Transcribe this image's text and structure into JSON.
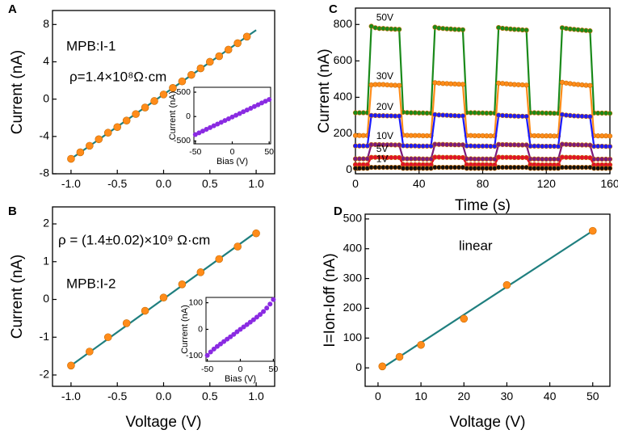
{
  "chart_data": [
    {
      "type": "scatter",
      "label": "A",
      "y_label": "Current (nA)",
      "xlim": [
        -1.2,
        1.2
      ],
      "ylim": [
        -8,
        9.5
      ],
      "xticks": [
        {
          "value": -1,
          "label": "-1.0"
        },
        -0.5,
        {
          "value": 0,
          "label": "0.0"
        },
        0.5,
        {
          "value": 1,
          "label": "1.0"
        }
      ],
      "yticks": [
        -8,
        -4,
        0,
        4,
        8
      ],
      "annotations": [
        "MPB:I-1",
        "ρ=1.4×10⁸Ω·cm"
      ],
      "series": [
        {
          "style": "line",
          "color": "#1f7f7f",
          "x": [
            -1,
            1
          ],
          "values": [
            -6.4,
            7.4
          ]
        },
        {
          "style": "markers",
          "color": "#ff8c1a",
          "x": [
            -1,
            -0.9,
            -0.8,
            -0.7,
            -0.6,
            -0.5,
            -0.4,
            -0.3,
            -0.2,
            -0.1,
            0,
            0.1,
            0.2,
            0.3,
            0.4,
            0.5,
            0.6,
            0.7,
            0.8,
            0.9
          ],
          "values": [
            -6.4,
            -5.7,
            -5.0,
            -4.3,
            -3.6,
            -3.0,
            -2.3,
            -1.6,
            -0.9,
            -0.2,
            0.5,
            1.2,
            1.9,
            2.6,
            3.3,
            4.0,
            4.6,
            5.3,
            6.0,
            6.7
          ]
        }
      ],
      "inset": {
        "type": "scatter",
        "x_label": "Bias (V)",
        "y_label": "Current (nA)",
        "xlim": [
          -52,
          52
        ],
        "ylim": [
          -560,
          600
        ],
        "xticks": [
          -50,
          0,
          50
        ],
        "yticks": [
          -500,
          0,
          500
        ],
        "series": [
          {
            "style": "markers",
            "color": "#8a2be2",
            "x": [
              -50,
              -45,
              -40,
              -35,
              -30,
              -25,
              -20,
              -15,
              -10,
              -5,
              0,
              5,
              10,
              15,
              20,
              25,
              30,
              35,
              40,
              45,
              50
            ],
            "values": [
              -370,
              -334,
              -298,
              -262,
              -226,
              -190,
              -154,
              -118,
              -82,
              -46,
              -10,
              26,
              62,
              98,
              134,
              170,
              206,
              242,
              278,
              314,
              350
            ]
          }
        ]
      }
    },
    {
      "type": "scatter",
      "label": "B",
      "x_label": "Voltage (V)",
      "y_label": "Current (nA)",
      "xlim": [
        -1.2,
        1.2
      ],
      "ylim": [
        -2.3,
        2.45
      ],
      "xticks": [
        {
          "value": -1,
          "label": "-1.0"
        },
        -0.5,
        {
          "value": 0,
          "label": "0.0"
        },
        0.5,
        {
          "value": 1,
          "label": "1.0"
        }
      ],
      "yticks": [
        -2,
        -1,
        0,
        1,
        2
      ],
      "annotations": [
        "ρ = (1.4±0.02)×10⁹ Ω·cm",
        "MPB:I-2"
      ],
      "series": [
        {
          "style": "line",
          "color": "#1f7f7f",
          "x": [
            -1,
            1
          ],
          "values": [
            -1.75,
            1.78
          ]
        },
        {
          "style": "markers",
          "color": "#ff8c1a",
          "x": [
            -1,
            -0.8,
            -0.6,
            -0.4,
            -0.2,
            0,
            0.2,
            0.4,
            0.6,
            0.8,
            1
          ],
          "values": [
            -1.75,
            -1.38,
            -1.0,
            -0.63,
            -0.3,
            0.05,
            0.4,
            0.72,
            1.07,
            1.4,
            1.75
          ]
        }
      ],
      "inset": {
        "type": "scatter",
        "x_label": "Bias (V)",
        "y_label": "Current (nA)",
        "xlim": [
          -52,
          52
        ],
        "ylim": [
          -120,
          120
        ],
        "xticks": [
          -50,
          0,
          50
        ],
        "yticks": [
          -100,
          0,
          100
        ],
        "series": [
          {
            "style": "markers",
            "color": "#8a2be2",
            "x": [
              -50,
              -45,
              -40,
              -35,
              -30,
              -25,
              -20,
              -15,
              -10,
              -5,
              0,
              5,
              10,
              15,
              20,
              25,
              30,
              35,
              40,
              45,
              50
            ],
            "values": [
              -98,
              -85,
              -74,
              -64,
              -55,
              -46,
              -37,
              -28,
              -19,
              -9,
              0,
              9,
              18,
              27,
              36,
              46,
              56,
              67,
              80,
              95,
              112
            ]
          }
        ]
      }
    },
    {
      "type": "line",
      "label": "C",
      "x_label": "Time (s)",
      "y_label": "Current (nA)",
      "xlim": [
        0,
        160
      ],
      "ylim": [
        -20,
        890
      ],
      "xticks": [
        0,
        40,
        80,
        120,
        160
      ],
      "yticks": [
        0,
        200,
        400,
        600,
        800
      ],
      "x": [
        0,
        2.5,
        5,
        7.5,
        10,
        12.5,
        15,
        17.5,
        20,
        22.5,
        25,
        27.5,
        30,
        32.5,
        35,
        37.5,
        40,
        42.5,
        45,
        47.5,
        50,
        52.5,
        55,
        57.5,
        60,
        62.5,
        65,
        67.5,
        70,
        72.5,
        75,
        77.5,
        80,
        82.5,
        85,
        87.5,
        90,
        92.5,
        95,
        97.5,
        100,
        102.5,
        105,
        107.5,
        110,
        112.5,
        115,
        117.5,
        120,
        122.5,
        125,
        127.5,
        130,
        132.5,
        135,
        137.5,
        140,
        142.5,
        145,
        147.5,
        150,
        152.5,
        155,
        157.5,
        160
      ],
      "series": [
        {
          "name": "50V",
          "style": "line+markers",
          "color": "#1a8a1a",
          "values": [
            315,
            315,
            315,
            315,
            790,
            782,
            778,
            778,
            776,
            775,
            774,
            773,
            318,
            316,
            315,
            315,
            314,
            314,
            313,
            313,
            785,
            780,
            778,
            776,
            775,
            773,
            772,
            771,
            316,
            315,
            315,
            314,
            314,
            313,
            313,
            313,
            783,
            779,
            777,
            775,
            773,
            772,
            770,
            769,
            315,
            315,
            314,
            314,
            313,
            313,
            312,
            312,
            782,
            778,
            775,
            773,
            771,
            769,
            767,
            765,
            314,
            313,
            313,
            313,
            312
          ]
        },
        {
          "name": "30V",
          "style": "line+markers",
          "color": "#ff8c1a",
          "values": [
            190,
            190,
            190,
            190,
            468,
            470,
            470,
            470,
            468,
            467,
            466,
            465,
            192,
            191,
            190,
            190,
            190,
            189,
            189,
            189,
            480,
            478,
            476,
            475,
            474,
            473,
            472,
            471,
            190,
            190,
            189,
            189,
            189,
            188,
            188,
            188,
            478,
            476,
            474,
            472,
            470,
            469,
            468,
            467,
            190,
            189,
            189,
            188,
            188,
            188,
            187,
            187,
            482,
            478,
            475,
            472,
            470,
            468,
            466,
            465,
            189,
            188,
            188,
            188,
            187
          ]
        },
        {
          "name": "20V",
          "style": "line+markers",
          "color": "#1a1aff",
          "values": [
            133,
            133,
            133,
            133,
            300,
            300,
            299,
            299,
            298,
            298,
            297,
            297,
            134,
            133,
            133,
            133,
            132,
            132,
            132,
            132,
            305,
            303,
            302,
            301,
            300,
            299,
            298,
            298,
            133,
            133,
            132,
            132,
            132,
            132,
            131,
            131,
            302,
            300,
            299,
            298,
            297,
            296,
            296,
            295,
            132,
            132,
            132,
            131,
            131,
            131,
            131,
            130,
            305,
            302,
            300,
            298,
            297,
            296,
            295,
            294,
            131,
            131,
            131,
            130,
            130
          ]
        },
        {
          "name": "10V",
          "style": "line+markers",
          "color": "#7b1a7b",
          "values": [
            62,
            62,
            62,
            62,
            140,
            140,
            140,
            139,
            139,
            139,
            138,
            138,
            63,
            62,
            62,
            62,
            62,
            61,
            61,
            61,
            142,
            141,
            141,
            140,
            140,
            139,
            139,
            139,
            62,
            62,
            61,
            61,
            61,
            61,
            61,
            60,
            141,
            140,
            140,
            139,
            139,
            138,
            138,
            138,
            61,
            61,
            61,
            60,
            60,
            60,
            60,
            60,
            142,
            141,
            140,
            139,
            139,
            138,
            138,
            137,
            60,
            60,
            60,
            60,
            60
          ]
        },
        {
          "name": "5V",
          "style": "line+markers",
          "color": "#e0102a",
          "values": [
            30,
            30,
            30,
            30,
            70,
            70,
            70,
            70,
            69,
            69,
            69,
            69,
            31,
            30,
            30,
            30,
            30,
            30,
            30,
            30,
            71,
            71,
            70,
            70,
            70,
            70,
            69,
            69,
            30,
            30,
            30,
            30,
            30,
            30,
            29,
            29,
            71,
            70,
            70,
            70,
            69,
            69,
            69,
            69,
            30,
            30,
            29,
            29,
            29,
            29,
            29,
            29,
            71,
            70,
            70,
            70,
            69,
            69,
            69,
            68,
            29,
            29,
            29,
            29,
            29
          ]
        },
        {
          "name": "1V",
          "style": "line+markers",
          "color": "#111111",
          "values": [
            10,
            10,
            10,
            10,
            15,
            15,
            15,
            15,
            15,
            15,
            15,
            15,
            10,
            10,
            10,
            10,
            10,
            10,
            10,
            10,
            15,
            15,
            15,
            15,
            15,
            15,
            15,
            15,
            10,
            10,
            10,
            10,
            10,
            10,
            10,
            10,
            15,
            15,
            15,
            15,
            15,
            15,
            15,
            15,
            10,
            10,
            10,
            10,
            10,
            10,
            10,
            10,
            15,
            15,
            15,
            15,
            15,
            15,
            15,
            15,
            10,
            10,
            10,
            10,
            10
          ]
        }
      ]
    },
    {
      "type": "scatter",
      "label": "D",
      "x_label": "Voltage (V)",
      "y_label": "I=Ion-Ioff (nA)",
      "xlim": [
        -3,
        54
      ],
      "ylim": [
        -62,
        516
      ],
      "xticks": [
        0,
        10,
        20,
        30,
        40,
        50
      ],
      "yticks": [
        0,
        100,
        200,
        300,
        400,
        500
      ],
      "annotations": [
        "linear"
      ],
      "series": [
        {
          "style": "line",
          "color": "#1f7f7f",
          "x": [
            1,
            50
          ],
          "values": [
            0,
            460
          ]
        },
        {
          "style": "markers",
          "color": "#ff8c1a",
          "x": [
            1,
            5,
            10,
            20,
            30,
            50
          ],
          "values": [
            5,
            37,
            77,
            165,
            278,
            460
          ]
        }
      ]
    }
  ]
}
